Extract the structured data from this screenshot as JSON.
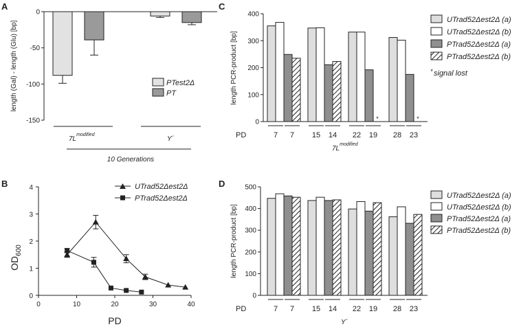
{
  "chart_data": [
    {
      "panel": "A",
      "type": "bar",
      "ylabel": "length (Gal) - length (Glu) [bp]",
      "ylim": [
        -150,
        0
      ],
      "yticks": [
        0,
        -50,
        -100,
        -150
      ],
      "groups": [
        "7L",
        "Y´"
      ],
      "group_superscripts": [
        "modified",
        ""
      ],
      "xlabel": "10 Generations",
      "series": [
        {
          "name": "PTest2Δ",
          "values": [
            -88,
            -6
          ],
          "errors": [
            11,
            2
          ],
          "color": "#e2e2e2"
        },
        {
          "name": "PT",
          "values": [
            -39,
            -15
          ],
          "errors": [
            21,
            3
          ],
          "color": "#9a9a9a"
        }
      ]
    },
    {
      "panel": "B",
      "type": "line",
      "ylabel": "OD",
      "ylabel_sub": "600",
      "xlabel": "PD",
      "xlim": [
        0,
        40
      ],
      "ylim": [
        0,
        4
      ],
      "xticks": [
        0,
        10,
        20,
        30,
        40
      ],
      "yticks": [
        0,
        1,
        2,
        3,
        4
      ],
      "series": [
        {
          "name": "UTrad52Δest2Δ",
          "marker": "triangle",
          "x": [
            7.5,
            15,
            23,
            28,
            34,
            38.5
          ],
          "y": [
            1.5,
            2.7,
            1.35,
            0.68,
            0.38,
            0.3
          ],
          "errors": [
            0.1,
            0.25,
            0.15,
            0.1,
            0,
            0
          ]
        },
        {
          "name": "PTrad52Δest2Δ",
          "marker": "square",
          "x": [
            7.5,
            14.5,
            19,
            23,
            27
          ],
          "y": [
            1.65,
            1.22,
            0.27,
            0.18,
            0.12
          ],
          "errors": [
            0.08,
            0.18,
            0,
            0,
            0
          ]
        }
      ]
    },
    {
      "panel": "C",
      "type": "bar",
      "ylabel": "length PCR-product [bp]",
      "ylim": [
        0,
        400
      ],
      "yticks": [
        0,
        100,
        200,
        300,
        400
      ],
      "xlabel_prefix": "PD",
      "xlabel": "7L",
      "xlabel_superscript": "modified",
      "pd_labels": [
        "7",
        "7",
        "15",
        "14",
        "22",
        "19",
        "28",
        "23"
      ],
      "series": [
        {
          "name": "UTrad52Δest2Δ  (a)",
          "values": [
            355,
            347,
            332,
            312
          ],
          "style": "light"
        },
        {
          "name": "UTrad52Δest2Δ  (b)",
          "values": [
            368,
            348,
            332,
            302
          ],
          "style": "white"
        },
        {
          "name": "PTrad52Δest2Δ  (a)",
          "values": [
            249,
            211,
            192,
            175
          ],
          "style": "dark"
        },
        {
          "name": "PTrad52Δest2Δ  (b)",
          "values": [
            235,
            223,
            null,
            null
          ],
          "style": "hatch"
        }
      ],
      "star_marker": "*",
      "note_mark": "*",
      "note": "signal lost"
    },
    {
      "panel": "D",
      "type": "bar",
      "ylabel": "length PCR-product [bp]",
      "ylim": [
        0,
        500
      ],
      "yticks": [
        0,
        100,
        200,
        300,
        400,
        500
      ],
      "xlabel_prefix": "PD",
      "xlabel": "Y´",
      "pd_labels": [
        "7",
        "7",
        "15",
        "14",
        "22",
        "19",
        "28",
        "23"
      ],
      "series": [
        {
          "name": "UTrad52Δest2Δ  (a)",
          "values": [
            447,
            437,
            398,
            362
          ],
          "style": "light"
        },
        {
          "name": "UTrad52Δest2Δ  (b)",
          "values": [
            468,
            452,
            432,
            408
          ],
          "style": "white"
        },
        {
          "name": "PTrad52Δest2Δ  (a)",
          "values": [
            458,
            437,
            388,
            332
          ],
          "style": "dark"
        },
        {
          "name": "PTrad52Δest2Δ  (b)",
          "values": [
            452,
            440,
            427,
            373
          ],
          "style": "hatch"
        }
      ]
    }
  ],
  "colors": {
    "light": "#dedede",
    "white": "#ffffff",
    "dark": "#8f8f8f",
    "stroke": "#222222"
  }
}
